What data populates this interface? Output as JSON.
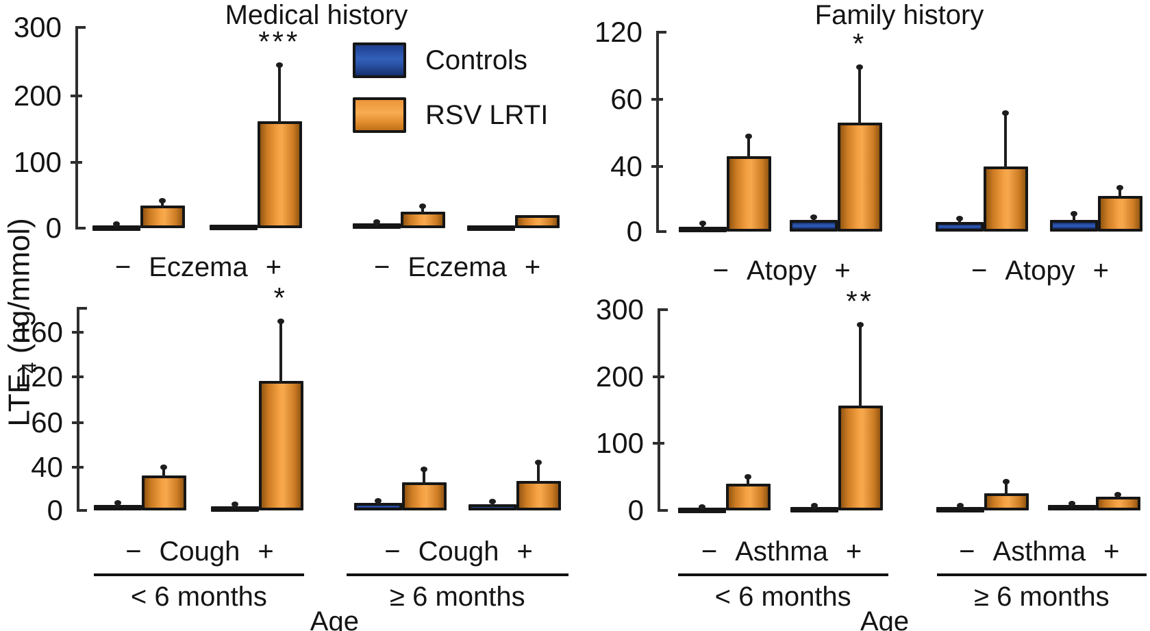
{
  "y_axis_label": {
    "prefix": "LTE",
    "sub": "4",
    "suffix": " (ng/mmol)"
  },
  "legend": [
    {
      "label": "Controls",
      "color": "#2d58b2"
    },
    {
      "label": "RSV LRTI",
      "color": "#f5a143"
    }
  ],
  "colors": {
    "controls_fill": "#2d58b2",
    "rsv_fill": "#f5a143",
    "bar_stroke": "#161616",
    "text": "#141414"
  },
  "chart_data": {
    "type": "bar",
    "series": [
      "Controls",
      "RSV LRTI"
    ],
    "ylabel": "LTE4 (ng/mmol)",
    "xlabel": "Age",
    "columns": [
      {
        "title": "Medical history"
      },
      {
        "title": "Family history"
      }
    ],
    "age_axis_label": "Age",
    "panels": [
      {
        "id": "eczema",
        "column": 0,
        "row": 0,
        "factor": "Eczema",
        "yticks": [
          0,
          100,
          200,
          300
        ],
        "groups": [
          {
            "age": "< 6 months",
            "pairs": [
              {
                "sign": "−",
                "controls": {
                  "value": 3,
                  "err": 6
                },
                "rsv": {
                  "value": 34,
                  "err": 42
                },
                "sig": null
              },
              {
                "sign": "+",
                "controls": {
                  "value": 5,
                  "err": null
                },
                "rsv": {
                  "value": 162,
                  "err": 245
                },
                "sig": "***"
              }
            ]
          },
          {
            "age": "≥ 6 months",
            "pairs": [
              {
                "sign": "−",
                "controls": {
                  "value": 7,
                  "err": 9
                },
                "rsv": {
                  "value": 25,
                  "err": 33
                },
                "sig": null
              },
              {
                "sign": "+",
                "controls": {
                  "value": 2,
                  "err": null
                },
                "rsv": {
                  "value": 20,
                  "err": null
                },
                "sig": null
              }
            ]
          }
        ]
      },
      {
        "id": "atopy",
        "column": 1,
        "row": 0,
        "factor": "Atopy",
        "yticks": [
          0,
          40,
          60,
          120
        ],
        "groups": [
          {
            "age": "< 6 months",
            "pairs": [
              {
                "sign": "−",
                "controls": {
                  "value": 3,
                  "err": 5
                },
                "rsv": {
                  "value": 43,
                  "err": 49
                },
                "sig": null
              },
              {
                "sign": "+",
                "controls": {
                  "value": 7,
                  "err": 9
                },
                "rsv": {
                  "value": 53,
                  "err": 89
                },
                "sig": "*"
              }
            ]
          },
          {
            "age": "≥ 6 months",
            "pairs": [
              {
                "sign": "−",
                "controls": {
                  "value": 6,
                  "err": 8
                },
                "rsv": {
                  "value": 40,
                  "err": 56
                },
                "sig": null
              },
              {
                "sign": "+",
                "controls": {
                  "value": 7,
                  "err": 11
                },
                "rsv": {
                  "value": 22,
                  "err": 27
                },
                "sig": null
              }
            ]
          }
        ]
      },
      {
        "id": "cough",
        "column": 0,
        "row": 1,
        "factor": "Cough",
        "yticks": [
          0,
          40,
          60,
          120,
          160
        ],
        "groups": [
          {
            "age": "< 6 months",
            "pairs": [
              {
                "sign": "−",
                "controls": {
                  "value": 5,
                  "err": 7
                },
                "rsv": {
                  "value": 32,
                  "err": 40
                },
                "sig": null
              },
              {
                "sign": "+",
                "controls": {
                  "value": 4,
                  "err": 6
                },
                "rsv": {
                  "value": 115,
                  "err": 170
                },
                "sig": "*"
              }
            ]
          },
          {
            "age": "≥ 6 months",
            "pairs": [
              {
                "sign": "−",
                "controls": {
                  "value": 7,
                  "err": 9
                },
                "rsv": {
                  "value": 26,
                  "err": 38
                },
                "sig": null
              },
              {
                "sign": "+",
                "controls": {
                  "value": 6,
                  "err": 8
                },
                "rsv": {
                  "value": 27,
                  "err": 42
                },
                "sig": null
              }
            ]
          }
        ]
      },
      {
        "id": "asthma",
        "column": 1,
        "row": 1,
        "factor": "Asthma",
        "yticks": [
          0,
          100,
          200,
          300
        ],
        "groups": [
          {
            "age": "< 6 months",
            "pairs": [
              {
                "sign": "−",
                "controls": {
                  "value": 3,
                  "err": 5
                },
                "rsv": {
                  "value": 40,
                  "err": 50
                },
                "sig": null
              },
              {
                "sign": "+",
                "controls": {
                  "value": 5,
                  "err": 7
                },
                "rsv": {
                  "value": 157,
                  "err": 278
                },
                "sig": "**"
              }
            ]
          },
          {
            "age": "≥ 6 months",
            "pairs": [
              {
                "sign": "−",
                "controls": {
                  "value": 5,
                  "err": 7
                },
                "rsv": {
                  "value": 26,
                  "err": 43
                },
                "sig": null
              },
              {
                "sign": "+",
                "controls": {
                  "value": 8,
                  "err": 10
                },
                "rsv": {
                  "value": 20,
                  "err": 23
                },
                "sig": null
              }
            ]
          }
        ]
      }
    ]
  }
}
